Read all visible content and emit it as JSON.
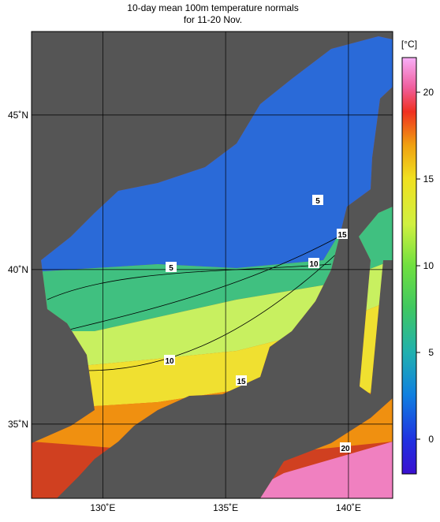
{
  "title": [
    "10-day mean 100m temperature normals",
    "for 11-20 Nov."
  ],
  "map": {
    "lon_range": [
      127.1,
      141.8
    ],
    "lat_range": [
      32.6,
      47.7
    ],
    "lon_ticks": [
      {
        "value": 130,
        "label": "130˚E"
      },
      {
        "value": 135,
        "label": "135˚E"
      },
      {
        "value": 140,
        "label": "140˚E"
      }
    ],
    "lat_ticks": [
      {
        "value": 45,
        "label": "45˚N"
      },
      {
        "value": 40,
        "label": "40˚N"
      },
      {
        "value": 35,
        "label": "35˚N"
      }
    ],
    "contour_labels": [
      5,
      5,
      10,
      10,
      15,
      15,
      20
    ]
  },
  "colorbar": {
    "unit": "[°C]",
    "range": [
      -2,
      22
    ],
    "ticks": [
      0,
      5,
      10,
      15,
      20
    ]
  }
}
